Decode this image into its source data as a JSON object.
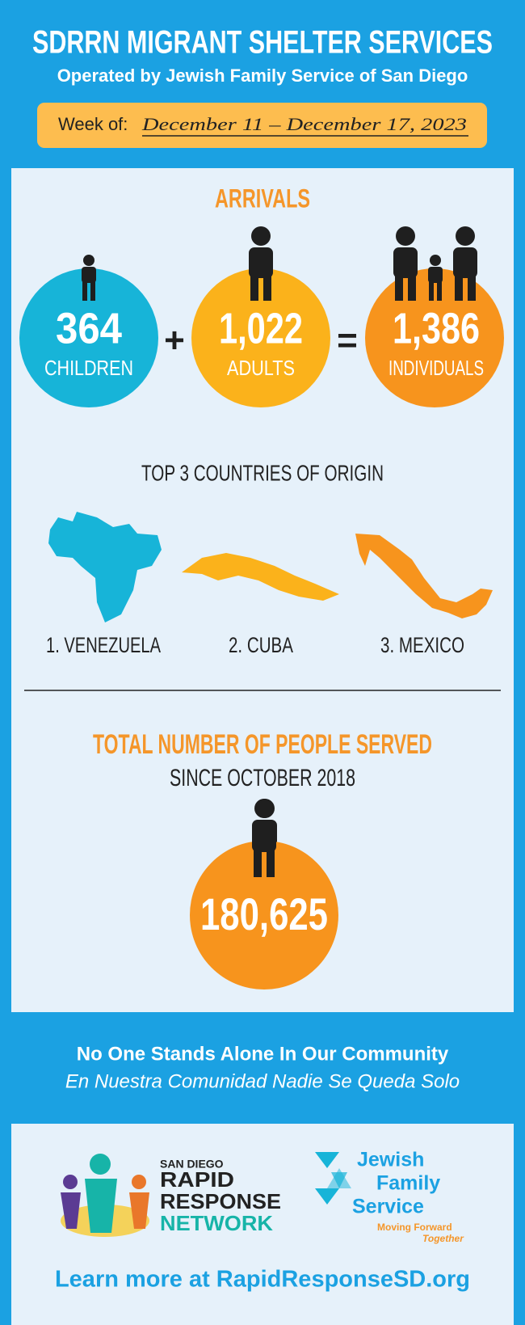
{
  "header": {
    "title": "SDRRN MIGRANT SHELTER SERVICES",
    "subtitle": "Operated by Jewish Family Service of San Diego"
  },
  "week": {
    "label": "Week of:",
    "dates": "December 11 – December 17, 2023"
  },
  "arrivals": {
    "title": "ARRIVALS",
    "items": [
      {
        "value": "364",
        "label": "CHILDREN"
      },
      {
        "value": "1,022",
        "label": "ADULTS"
      },
      {
        "value": "1,386",
        "label": "INDIVIDUALS"
      }
    ],
    "plus": "+",
    "equals": "="
  },
  "countries": {
    "title": "TOP 3 COUNTRIES OF ORIGIN",
    "items": [
      "1. VENEZUELA",
      "2. CUBA",
      "3. MEXICO"
    ]
  },
  "total": {
    "title": "TOTAL NUMBER OF PEOPLE SERVED",
    "subtitle": "SINCE OCTOBER 2018",
    "value": "180,625"
  },
  "footer": {
    "line1": "No One Stands Alone In Our Community",
    "line2": "En Nuestra Comunidad Nadie Se Queda Solo",
    "link": "Learn more at RapidResponseSD.org"
  },
  "logos": {
    "rrn": {
      "top": "SAN DIEGO",
      "line1": "RAPID",
      "line2": "RESPONSE",
      "line3": "NETWORK"
    },
    "jfs": {
      "line1": "Jewish",
      "line2": "Family",
      "line3": "Service",
      "tag1": "Moving Forward",
      "tag2": "Together"
    }
  }
}
